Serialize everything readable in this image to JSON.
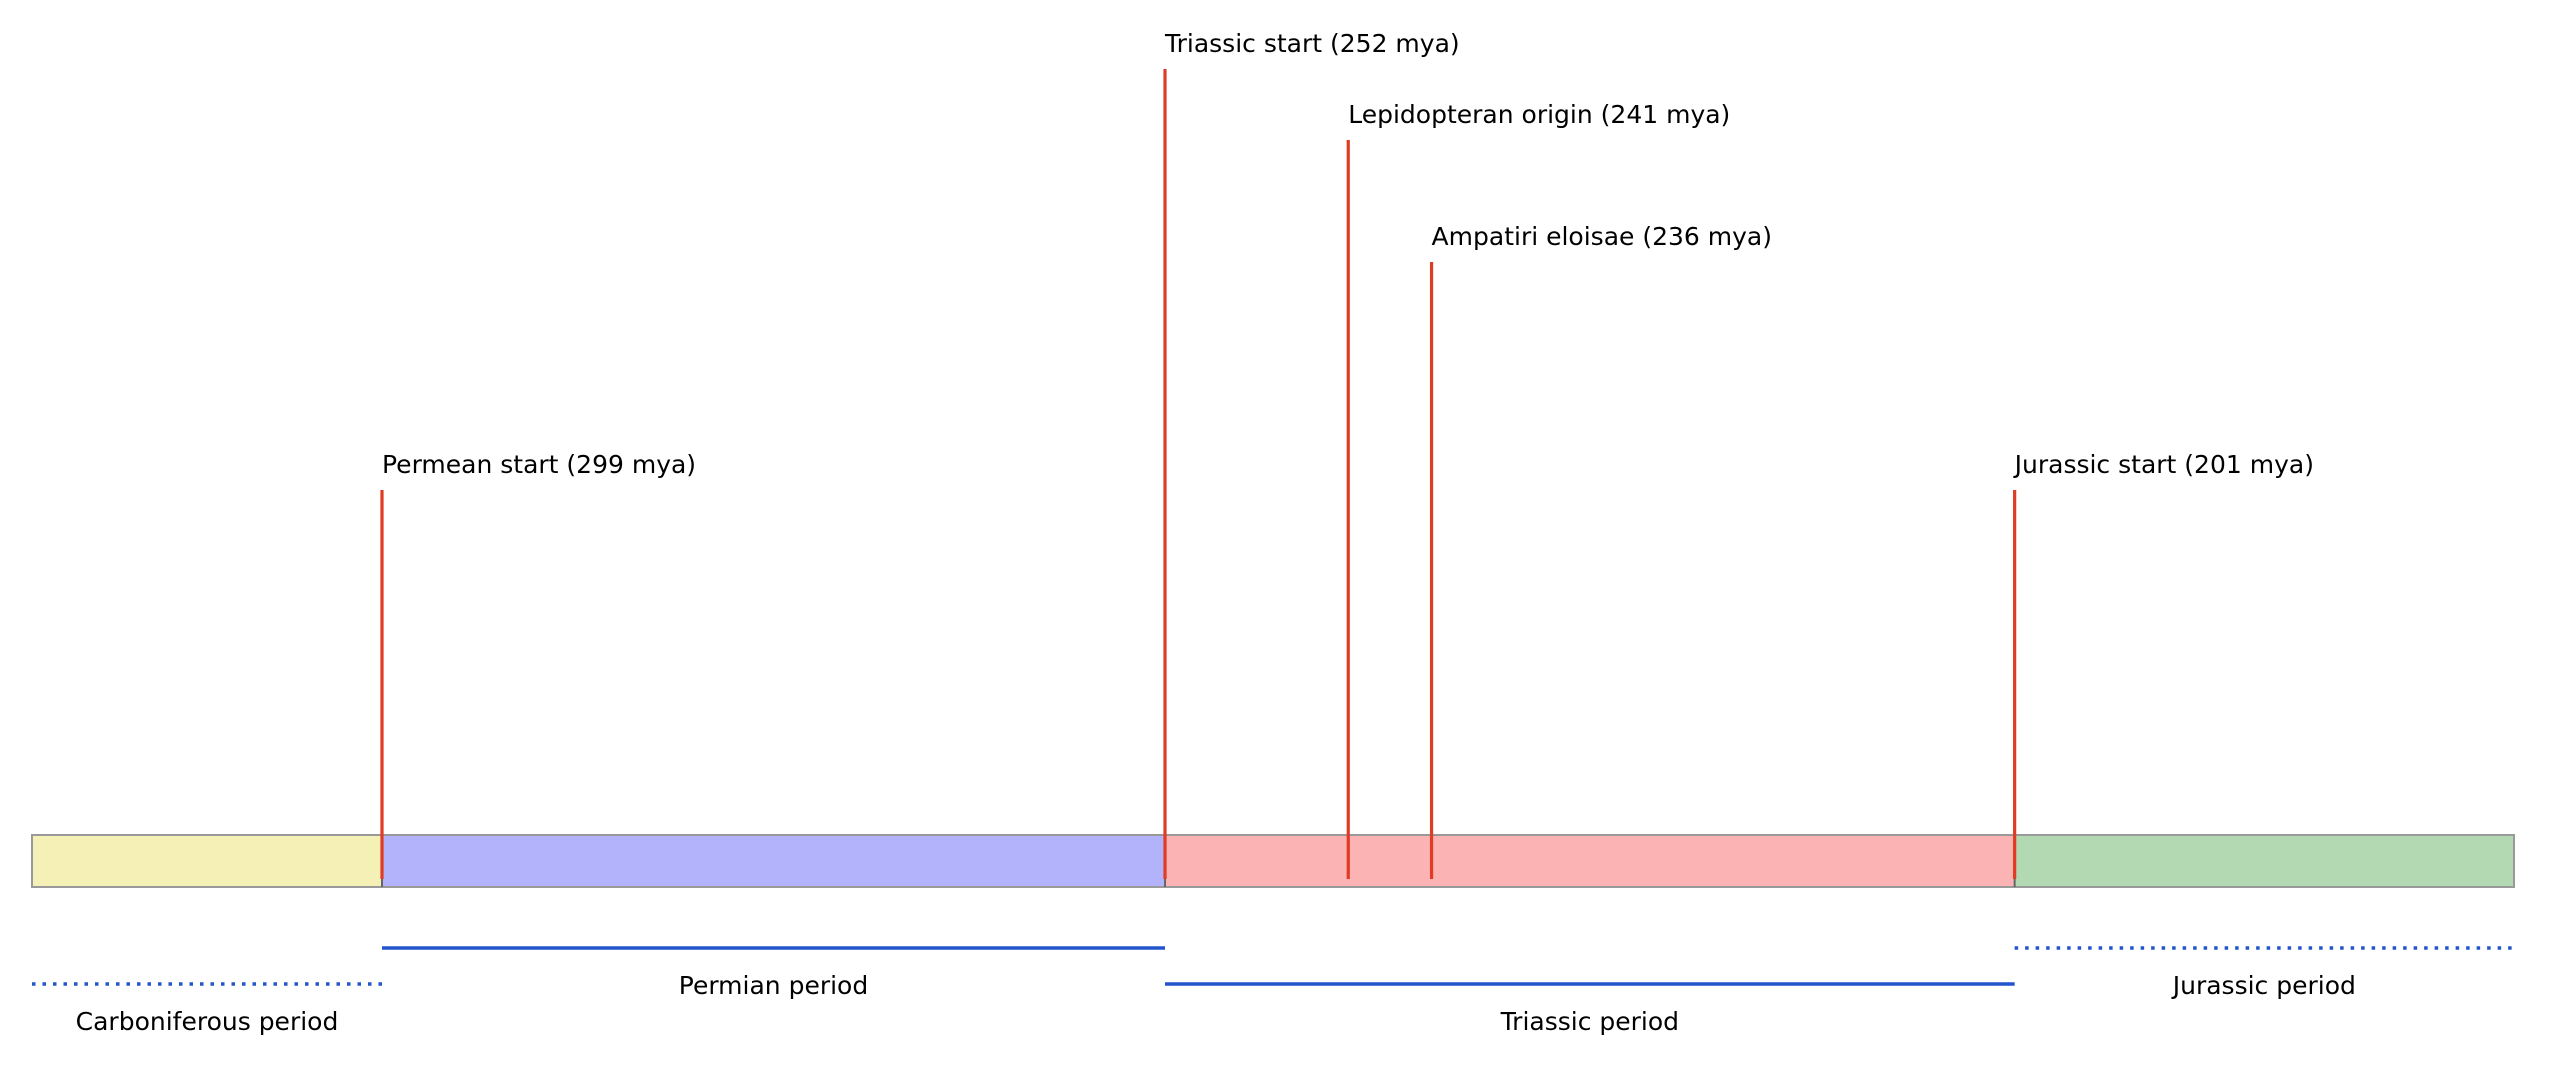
{
  "chart_data": {
    "type": "timeline",
    "x_unit": "mya",
    "x_range": [
      320,
      170
    ],
    "periods": [
      {
        "name": "Carboniferous period",
        "start": 320,
        "end": 299,
        "color": "#f5f0b5",
        "line_style": "dotted"
      },
      {
        "name": "Permian period",
        "start": 299,
        "end": 252,
        "color": "#b3b3fb",
        "line_style": "solid"
      },
      {
        "name": "Triassic period",
        "start": 252,
        "end": 201,
        "color": "#fcb3b3",
        "line_style": "solid"
      },
      {
        "name": "Jurassic period",
        "start": 201,
        "end": 171,
        "color": "#b3d9b3",
        "line_style": "dotted"
      }
    ],
    "events": [
      {
        "label": "Permean start (299 mya)",
        "mya": 299,
        "tier": 1
      },
      {
        "label": "Triassic start (252 mya)",
        "mya": 252,
        "tier": 4
      },
      {
        "label": "Lepidopteran origin (241 mya)",
        "mya": 241,
        "tier": 3
      },
      {
        "label": "Ampatiri eloisae (236 mya)",
        "mya": 236,
        "tier": 2
      },
      {
        "label": "Jurassic start (201 mya)",
        "mya": 201,
        "tier": 1
      }
    ],
    "colors": {
      "event_line": "#e03b24",
      "period_line": "#2255cc",
      "bar_border": "#999999"
    }
  }
}
